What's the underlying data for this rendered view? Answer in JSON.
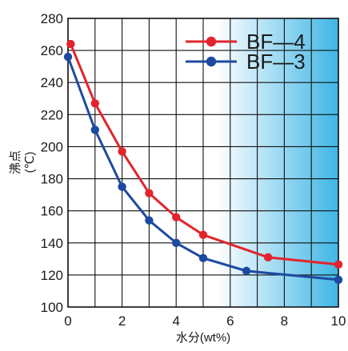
{
  "chart_data": {
    "type": "line",
    "title": "",
    "xlabel": "水分(wt%)",
    "ylabel": [
      "沸点",
      "(℃)"
    ],
    "xlim": [
      0,
      10
    ],
    "ylim": [
      100,
      280
    ],
    "xticks": [
      0,
      2,
      4,
      6,
      8,
      10
    ],
    "yticks": [
      100,
      120,
      140,
      160,
      180,
      200,
      220,
      240,
      260,
      280
    ],
    "grid": true,
    "legend_position": "top-right",
    "background_gradient": [
      "#ffffff",
      "#3fb6e6"
    ],
    "series": [
      {
        "name": "BF—4",
        "color": "#e2242c",
        "x": [
          0.1,
          1.0,
          2.0,
          3.0,
          4.0,
          5.0,
          7.4,
          10.0
        ],
        "y": [
          264,
          227,
          197,
          171,
          156,
          145,
          131,
          126.5
        ]
      },
      {
        "name": "BF—3",
        "color": "#1d4aa0",
        "x": [
          0.0,
          1.0,
          2.0,
          3.0,
          4.0,
          5.0,
          6.6,
          10.0
        ],
        "y": [
          256,
          210.5,
          175,
          154,
          140,
          130.5,
          122.5,
          117
        ]
      }
    ]
  }
}
